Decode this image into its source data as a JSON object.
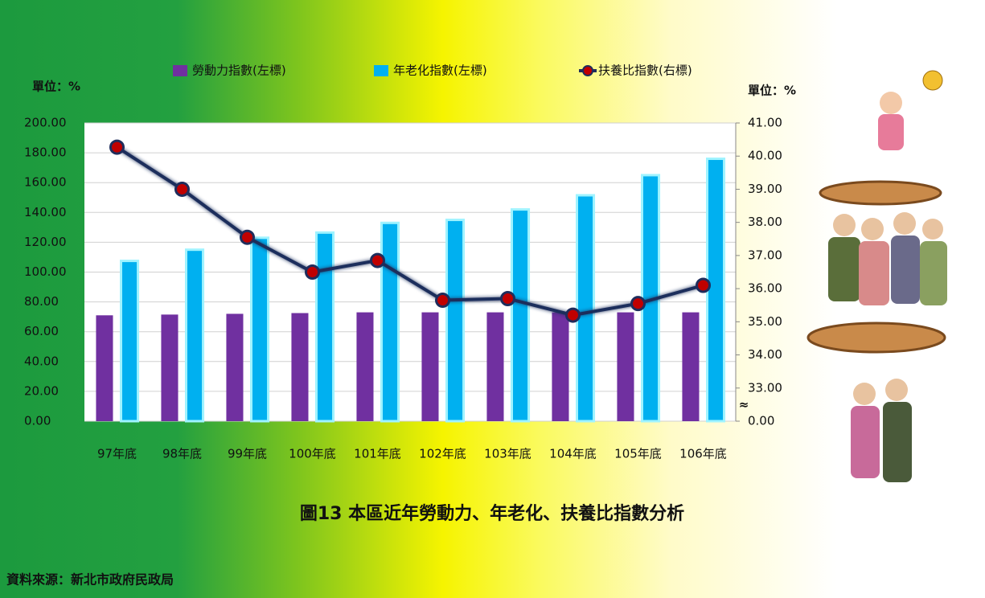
{
  "chart_data": {
    "type": "bar_line",
    "title": "圖13  本區近年勞動力、年老化、扶養比指數分析",
    "y_unit": "單位：%",
    "y2_unit": "單位：%",
    "source": "資料來源：新北市政府民政局",
    "categories": [
      "97年底",
      "98年底",
      "99年底",
      "100年底",
      "101年底",
      "102年底",
      "103年底",
      "104年底",
      "105年底",
      "106年底"
    ],
    "series": [
      {
        "name": "勞動力指數(左標)",
        "type": "bar",
        "color": "#7030a0",
        "values": [
          71,
          71.5,
          72,
          72.5,
          73,
          73,
          73,
          73,
          73,
          73
        ]
      },
      {
        "name": "年老化指數(左標)",
        "type": "bar",
        "color": "#00b0f0",
        "values": [
          107.5,
          115,
          123,
          126.5,
          133,
          135,
          142,
          151.5,
          165,
          176
        ]
      },
      {
        "name": "扶養比指數(右標)",
        "type": "line",
        "axis": "y2",
        "color": "#1f2d5c",
        "marker_color": "#c00000",
        "values": [
          40.27,
          39.0,
          37.55,
          36.5,
          36.85,
          35.65,
          35.7,
          35.2,
          35.55,
          36.1
        ]
      }
    ],
    "ylim": [
      0,
      200
    ],
    "yticks": [
      {
        "value": 0,
        "label": "0.00"
      },
      {
        "value": 20,
        "label": "20.00"
      },
      {
        "value": 40,
        "label": "40.00"
      },
      {
        "value": 60,
        "label": "60.00"
      },
      {
        "value": 80,
        "label": "80.00"
      },
      {
        "value": 100,
        "label": "100.00"
      },
      {
        "value": 120,
        "label": "120.00"
      },
      {
        "value": 140,
        "label": "140.00"
      },
      {
        "value": 160,
        "label": "160.00"
      },
      {
        "value": 180,
        "label": "180.00"
      },
      {
        "value": 200,
        "label": "200.00"
      }
    ],
    "y2lim": [
      32,
      41
    ],
    "y2_break": true,
    "y2ticks": [
      {
        "value": 0,
        "label": "0.00"
      },
      {
        "value": 33,
        "label": "33.00"
      },
      {
        "value": 34,
        "label": "34.00"
      },
      {
        "value": 35,
        "label": "35.00"
      },
      {
        "value": 36,
        "label": "36.00"
      },
      {
        "value": 37,
        "label": "37.00"
      },
      {
        "value": 38,
        "label": "38.00"
      },
      {
        "value": 39,
        "label": "39.00"
      },
      {
        "value": 40,
        "label": "40.00"
      },
      {
        "value": 41,
        "label": "41.00"
      }
    ],
    "grid": true
  }
}
